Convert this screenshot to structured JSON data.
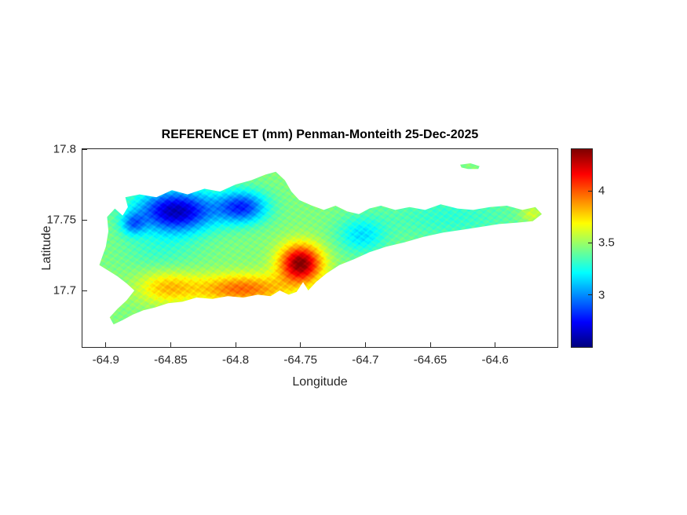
{
  "chart_data": {
    "type": "heatmap",
    "title": "REFERENCE ET (mm) Penman-Monteith 25-Dec-2025",
    "xlabel": "Longitude",
    "ylabel": "Latitude",
    "value_units": "mm",
    "xlim": [
      -64.918,
      -64.552
    ],
    "ylim": [
      17.66,
      17.8
    ],
    "grid": false,
    "xticks": [
      {
        "value": -64.9,
        "label": "-64.9"
      },
      {
        "value": -64.85,
        "label": "-64.85"
      },
      {
        "value": -64.8,
        "label": "-64.8"
      },
      {
        "value": -64.75,
        "label": "-64.75"
      },
      {
        "value": -64.7,
        "label": "-64.7"
      },
      {
        "value": -64.65,
        "label": "-64.65"
      },
      {
        "value": -64.6,
        "label": "-64.6"
      }
    ],
    "yticks": [
      {
        "value": 17.7,
        "label": "17.7"
      },
      {
        "value": 17.75,
        "label": "17.75"
      },
      {
        "value": 17.8,
        "label": "17.8"
      }
    ],
    "colorbar": {
      "colormap": "jet",
      "vmin": 2.5,
      "vmax": 4.4,
      "position": "right",
      "ticks": [
        {
          "value": 3,
          "label": "3"
        },
        {
          "value": 3.5,
          "label": "3.5"
        },
        {
          "value": 4,
          "label": "4"
        }
      ]
    },
    "field": {
      "base": 3.45,
      "noise_amp": 0.05,
      "gaussians": [
        {
          "lon": -64.846,
          "lat": 17.756,
          "amp": -0.85,
          "sx": 0.021,
          "sy": 0.0105
        },
        {
          "lon": -64.795,
          "lat": 17.759,
          "amp": -0.62,
          "sx": 0.0135,
          "sy": 0.008
        },
        {
          "lon": -64.879,
          "lat": 17.747,
          "amp": -0.38,
          "sx": 0.0065,
          "sy": 0.0055
        },
        {
          "lon": -64.75,
          "lat": 17.719,
          "amp": 0.95,
          "sx": 0.0115,
          "sy": 0.0095
        },
        {
          "lon": -64.795,
          "lat": 17.701,
          "amp": 0.52,
          "sx": 0.026,
          "sy": 0.0075
        },
        {
          "lon": -64.853,
          "lat": 17.702,
          "amp": 0.33,
          "sx": 0.016,
          "sy": 0.008
        },
        {
          "lon": -64.703,
          "lat": 17.739,
          "amp": -0.28,
          "sx": 0.013,
          "sy": 0.009
        },
        {
          "lon": -64.635,
          "lat": 17.752,
          "amp": -0.15,
          "sx": 0.035,
          "sy": 0.012
        },
        {
          "lon": -64.858,
          "lat": 17.728,
          "amp": -0.12,
          "sx": 0.02,
          "sy": 0.01
        },
        {
          "lon": -64.572,
          "lat": 17.754,
          "amp": 0.18,
          "sx": 0.006,
          "sy": 0.004
        }
      ]
    },
    "island_outline": [
      [
        -64.905,
        17.718
      ],
      [
        -64.9,
        17.731
      ],
      [
        -64.898,
        17.742
      ],
      [
        -64.899,
        17.752
      ],
      [
        -64.893,
        17.758
      ],
      [
        -64.887,
        17.753
      ],
      [
        -64.883,
        17.759
      ],
      [
        -64.885,
        17.766
      ],
      [
        -64.874,
        17.768
      ],
      [
        -64.861,
        17.766
      ],
      [
        -64.849,
        17.771
      ],
      [
        -64.837,
        17.768
      ],
      [
        -64.824,
        17.772
      ],
      [
        -64.812,
        17.77
      ],
      [
        -64.8,
        17.775
      ],
      [
        -64.788,
        17.778
      ],
      [
        -64.777,
        17.782
      ],
      [
        -64.769,
        17.784
      ],
      [
        -64.762,
        17.778
      ],
      [
        -64.757,
        17.77
      ],
      [
        -64.751,
        17.764
      ],
      [
        -64.741,
        17.76
      ],
      [
        -64.732,
        17.757
      ],
      [
        -64.723,
        17.76
      ],
      [
        -64.714,
        17.756
      ],
      [
        -64.705,
        17.754
      ],
      [
        -64.697,
        17.758
      ],
      [
        -64.688,
        17.76
      ],
      [
        -64.677,
        17.757
      ],
      [
        -64.666,
        17.759
      ],
      [
        -64.654,
        17.757
      ],
      [
        -64.642,
        17.761
      ],
      [
        -64.629,
        17.758
      ],
      [
        -64.617,
        17.757
      ],
      [
        -64.604,
        17.759
      ],
      [
        -64.591,
        17.76
      ],
      [
        -64.579,
        17.757
      ],
      [
        -64.569,
        17.759
      ],
      [
        -64.564,
        17.754
      ],
      [
        -64.571,
        17.749
      ],
      [
        -64.583,
        17.748
      ],
      [
        -64.597,
        17.747
      ],
      [
        -64.611,
        17.745
      ],
      [
        -64.625,
        17.743
      ],
      [
        -64.64,
        17.741
      ],
      [
        -64.655,
        17.738
      ],
      [
        -64.67,
        17.734
      ],
      [
        -64.684,
        17.731
      ],
      [
        -64.697,
        17.727
      ],
      [
        -64.709,
        17.722
      ],
      [
        -64.72,
        17.718
      ],
      [
        -64.73,
        17.712
      ],
      [
        -64.738,
        17.706
      ],
      [
        -64.744,
        17.7
      ],
      [
        -64.748,
        17.706
      ],
      [
        -64.753,
        17.699
      ],
      [
        -64.759,
        17.697
      ],
      [
        -64.766,
        17.7
      ],
      [
        -64.773,
        17.696
      ],
      [
        -64.783,
        17.697
      ],
      [
        -64.794,
        17.695
      ],
      [
        -64.806,
        17.696
      ],
      [
        -64.818,
        17.694
      ],
      [
        -64.83,
        17.695
      ],
      [
        -64.841,
        17.692
      ],
      [
        -64.852,
        17.691
      ],
      [
        -64.862,
        17.688
      ],
      [
        -64.871,
        17.686
      ],
      [
        -64.879,
        17.683
      ],
      [
        -64.887,
        17.679
      ],
      [
        -64.894,
        17.676
      ],
      [
        -64.897,
        17.681
      ],
      [
        -64.891,
        17.687
      ],
      [
        -64.884,
        17.693
      ],
      [
        -64.878,
        17.7
      ],
      [
        -64.884,
        17.705
      ],
      [
        -64.891,
        17.71
      ],
      [
        -64.898,
        17.714
      ]
    ],
    "islet_outline": [
      [
        -64.627,
        17.789
      ],
      [
        -64.619,
        17.79
      ],
      [
        -64.612,
        17.788
      ],
      [
        -64.613,
        17.786
      ],
      [
        -64.621,
        17.786
      ],
      [
        -64.626,
        17.787
      ]
    ]
  }
}
